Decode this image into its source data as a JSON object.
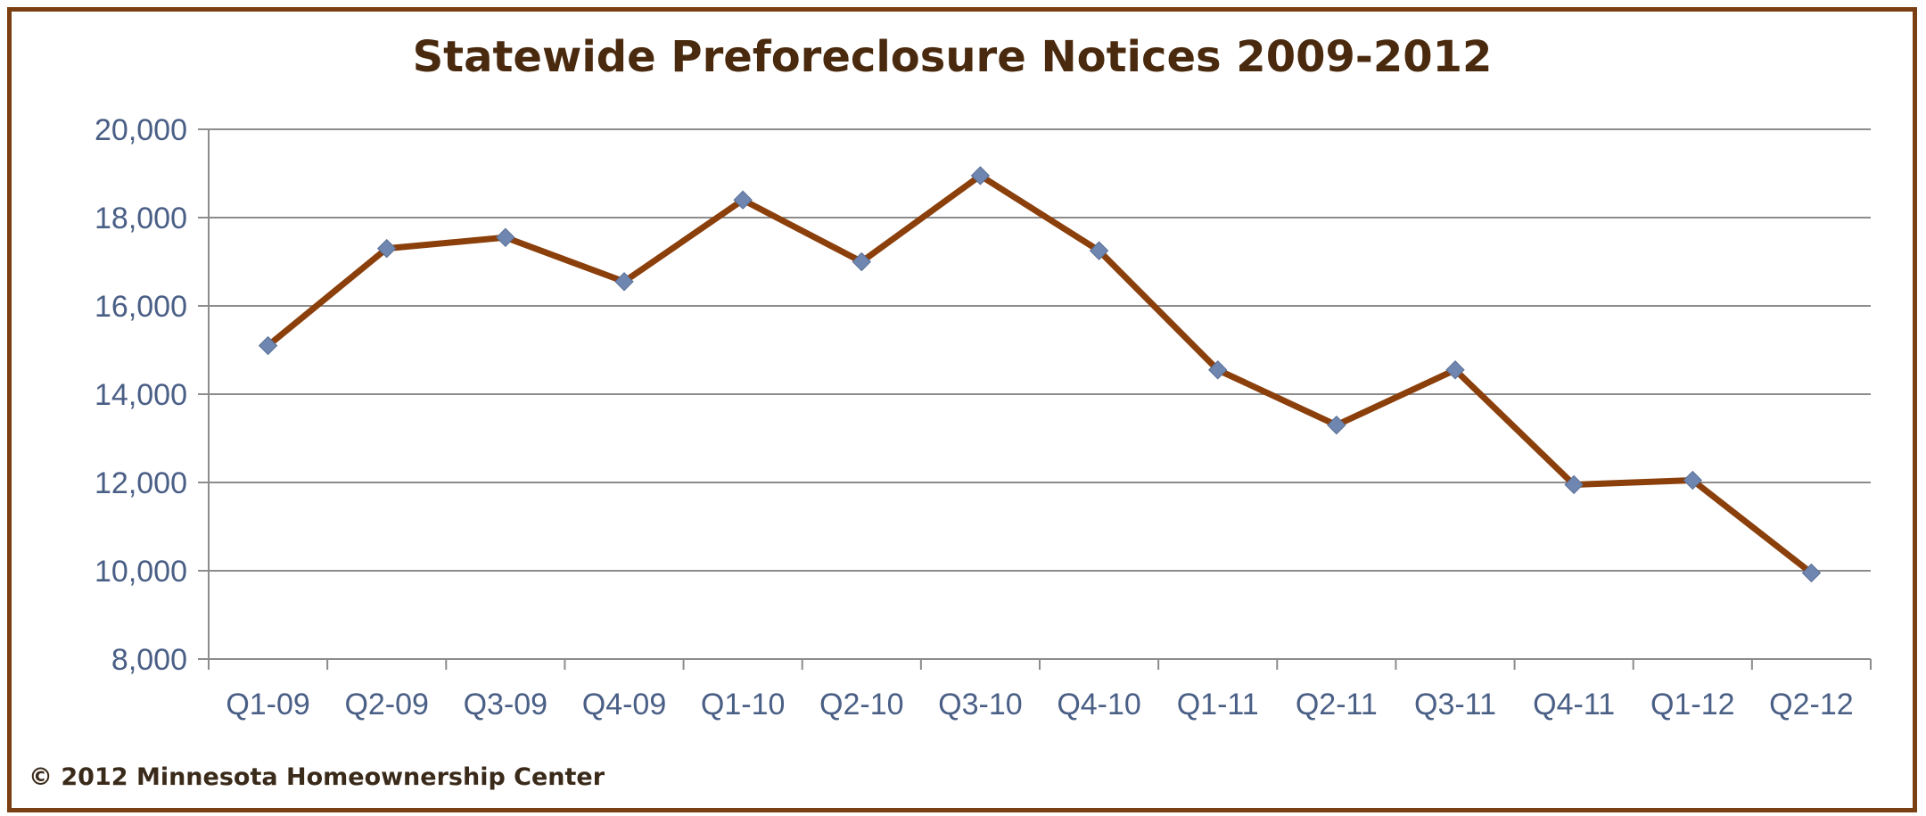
{
  "chart_data": {
    "type": "line",
    "title": "Statewide Preforeclosure  Notices 2009-2012",
    "xlabel": "",
    "ylabel": "",
    "categories": [
      "Q1-09",
      "Q2-09",
      "Q3-09",
      "Q4-09",
      "Q1-10",
      "Q2-10",
      "Q3-10",
      "Q4-10",
      "Q1-11",
      "Q2-11",
      "Q3-11",
      "Q4-11",
      "Q1-12",
      "Q2-12"
    ],
    "series": [
      {
        "values": [
          15100,
          17300,
          17550,
          16550,
          18400,
          17000,
          18950,
          17250,
          14550,
          13300,
          14550,
          11950,
          12050,
          9950
        ],
        "line_color": "#8b3f0b",
        "marker_color": "#6f87b0",
        "marker": "diamond"
      }
    ],
    "ylim": [
      8000,
      20000
    ],
    "yticks": [
      8000,
      10000,
      12000,
      14000,
      16000,
      18000,
      20000
    ],
    "ytick_labels": [
      "8,000",
      "10,000",
      "12,000",
      "14,000",
      "16,000",
      "18,000",
      "20,000"
    ],
    "grid": true,
    "legend": "none"
  },
  "credit": "© 2012  Minnesota  Homeownership  Center",
  "colors": {
    "frame": "#7a3f12",
    "gridline": "#8c8c8c",
    "tick_label": "#4a5f86",
    "title": "#4a2a0e"
  }
}
